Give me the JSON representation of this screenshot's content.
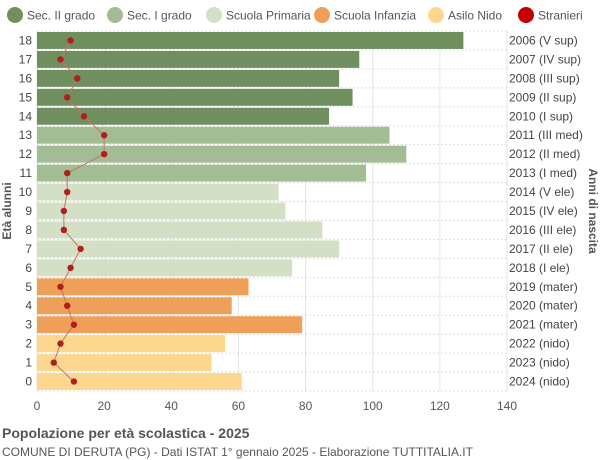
{
  "chart_data": {
    "type": "bar",
    "orientation": "horizontal",
    "title": "Popolazione per età scolastica - 2025",
    "subtitle": "COMUNE DI DERUTA (PG) - Dati ISTAT 1° gennaio 2025 - Elaborazione TUTTITALIA.IT",
    "ylabel_left": "Età alunni",
    "ylabel_right": "Anni di nascita",
    "xlim": [
      0,
      140
    ],
    "xticks": [
      0,
      20,
      40,
      60,
      80,
      100,
      120,
      140
    ],
    "grid": true,
    "legend_position": "top",
    "legend": [
      {
        "name": "Sec. II grado",
        "color": "#6f8f5f"
      },
      {
        "name": "Sec. I grado",
        "color": "#a2bc93"
      },
      {
        "name": "Scuola Primaria",
        "color": "#d3e0c6"
      },
      {
        "name": "Scuola Infanzia",
        "color": "#eea058"
      },
      {
        "name": "Asilo Nido",
        "color": "#fcd88e"
      },
      {
        "name": "Stranieri",
        "color": "#c40000"
      }
    ],
    "rows": [
      {
        "age": "18",
        "birth": "2006 (V sup)",
        "value": 127,
        "stranieri": 10,
        "group": 0
      },
      {
        "age": "17",
        "birth": "2007 (IV sup)",
        "value": 96,
        "stranieri": 7,
        "group": 0
      },
      {
        "age": "16",
        "birth": "2008 (III sup)",
        "value": 90,
        "stranieri": 12,
        "group": 0
      },
      {
        "age": "15",
        "birth": "2009 (II sup)",
        "value": 94,
        "stranieri": 9,
        "group": 0
      },
      {
        "age": "14",
        "birth": "2010 (I sup)",
        "value": 87,
        "stranieri": 14,
        "group": 0
      },
      {
        "age": "13",
        "birth": "2011 (III med)",
        "value": 105,
        "stranieri": 20,
        "group": 1
      },
      {
        "age": "12",
        "birth": "2012 (II med)",
        "value": 110,
        "stranieri": 20,
        "group": 1
      },
      {
        "age": "11",
        "birth": "2013 (I med)",
        "value": 98,
        "stranieri": 9,
        "group": 1
      },
      {
        "age": "10",
        "birth": "2014 (V ele)",
        "value": 72,
        "stranieri": 9,
        "group": 2
      },
      {
        "age": "9",
        "birth": "2015 (IV ele)",
        "value": 74,
        "stranieri": 8,
        "group": 2
      },
      {
        "age": "8",
        "birth": "2016 (III ele)",
        "value": 85,
        "stranieri": 8,
        "group": 2
      },
      {
        "age": "7",
        "birth": "2017 (II ele)",
        "value": 90,
        "stranieri": 13,
        "group": 2
      },
      {
        "age": "6",
        "birth": "2018 (I ele)",
        "value": 76,
        "stranieri": 10,
        "group": 2
      },
      {
        "age": "5",
        "birth": "2019 (mater)",
        "value": 63,
        "stranieri": 7,
        "group": 3
      },
      {
        "age": "4",
        "birth": "2020 (mater)",
        "value": 58,
        "stranieri": 9,
        "group": 3
      },
      {
        "age": "3",
        "birth": "2021 (mater)",
        "value": 79,
        "stranieri": 11,
        "group": 3
      },
      {
        "age": "2",
        "birth": "2022 (nido)",
        "value": 56,
        "stranieri": 7,
        "group": 4
      },
      {
        "age": "1",
        "birth": "2023 (nido)",
        "value": 52,
        "stranieri": 5,
        "group": 4
      },
      {
        "age": "0",
        "birth": "2024 (nido)",
        "value": 61,
        "stranieri": 11,
        "group": 4
      }
    ]
  }
}
